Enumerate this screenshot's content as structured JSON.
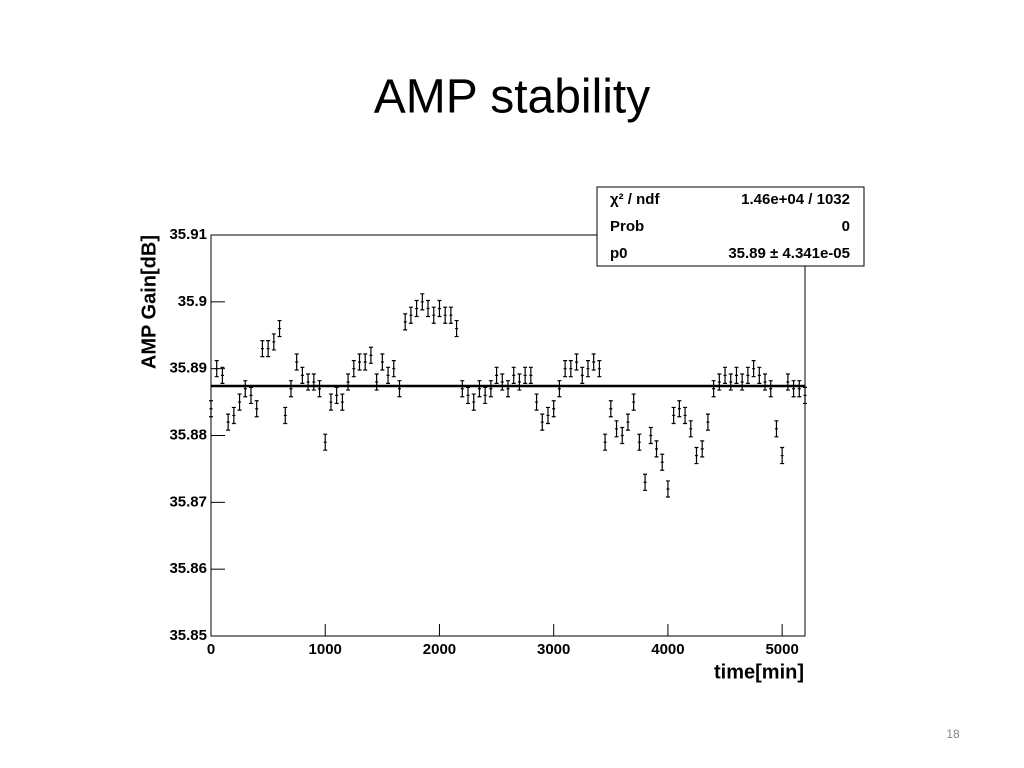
{
  "chart_data": {
    "type": "errorbar",
    "title": "AMP stability",
    "page_number": "18",
    "x_label": "time[min]",
    "y_label": "AMP Gain[dB]",
    "xlim": [
      0,
      5200
    ],
    "xticks": [
      0,
      1000,
      2000,
      3000,
      4000,
      5000
    ],
    "ylim": [
      35.85,
      35.91
    ],
    "yticks": [
      35.85,
      35.86,
      35.87,
      35.88,
      35.89,
      35.9,
      35.91
    ],
    "color": "#000000",
    "fit_value": 35.8874,
    "stats": [
      {
        "label": "χ² / ndf",
        "value": "1.46e+04 / 1032"
      },
      {
        "label": "Prob",
        "value": "0"
      },
      {
        "label": "p0",
        "value": "35.89 ± 4.341e-05"
      }
    ],
    "x": [
      0,
      50,
      100,
      150,
      200,
      250,
      300,
      350,
      400,
      450,
      500,
      550,
      600,
      650,
      700,
      750,
      800,
      850,
      900,
      950,
      1000,
      1050,
      1100,
      1150,
      1200,
      1250,
      1300,
      1350,
      1400,
      1450,
      1500,
      1550,
      1600,
      1650,
      1700,
      1750,
      1800,
      1850,
      1900,
      1950,
      2000,
      2050,
      2100,
      2150,
      2200,
      2250,
      2300,
      2350,
      2400,
      2450,
      2500,
      2550,
      2600,
      2650,
      2700,
      2750,
      2800,
      2850,
      2900,
      2950,
      3000,
      3050,
      3100,
      3150,
      3200,
      3250,
      3300,
      3350,
      3400,
      3450,
      3500,
      3550,
      3600,
      3650,
      3700,
      3750,
      3800,
      3850,
      3900,
      3950,
      4000,
      4050,
      4100,
      4150,
      4200,
      4250,
      4300,
      4350,
      4400,
      4450,
      4500,
      4550,
      4600,
      4650,
      4700,
      4750,
      4800,
      4850,
      4900,
      4950,
      5000,
      5050,
      5100,
      5150,
      5200
    ],
    "values": [
      35.884,
      35.89,
      35.889,
      35.882,
      35.883,
      35.885,
      35.887,
      35.886,
      35.884,
      35.893,
      35.893,
      35.894,
      35.896,
      35.883,
      35.887,
      35.891,
      35.889,
      35.888,
      35.888,
      35.887,
      35.879,
      35.885,
      35.886,
      35.885,
      35.888,
      35.89,
      35.891,
      35.891,
      35.892,
      35.888,
      35.891,
      35.889,
      35.89,
      35.887,
      35.897,
      35.898,
      35.899,
      35.9,
      35.899,
      35.898,
      35.899,
      35.898,
      35.898,
      35.896,
      35.887,
      35.886,
      35.885,
      35.887,
      35.886,
      35.887,
      35.889,
      35.888,
      35.887,
      35.889,
      35.888,
      35.889,
      35.889,
      35.885,
      35.882,
      35.883,
      35.884,
      35.887,
      35.89,
      35.89,
      35.891,
      35.889,
      35.89,
      35.891,
      35.89,
      35.879,
      35.884,
      35.881,
      35.88,
      35.882,
      35.885,
      35.879,
      35.873,
      35.88,
      35.878,
      35.876,
      35.872,
      35.883,
      35.884,
      35.883,
      35.881,
      35.877,
      35.878,
      35.882,
      35.887,
      35.888,
      35.889,
      35.888,
      35.889,
      35.888,
      35.889,
      35.89,
      35.889,
      35.888,
      35.887,
      35.881,
      35.877,
      35.888,
      35.887,
      35.887,
      35.886
    ],
    "errors": [
      0.0012,
      0.0012,
      0.0012,
      0.0012,
      0.0012,
      0.0012,
      0.0012,
      0.0012,
      0.0012,
      0.0012,
      0.0012,
      0.0012,
      0.0012,
      0.0012,
      0.0012,
      0.0012,
      0.0012,
      0.0012,
      0.0012,
      0.0012,
      0.0012,
      0.0012,
      0.0012,
      0.0012,
      0.0012,
      0.0012,
      0.0012,
      0.0012,
      0.0012,
      0.0012,
      0.0012,
      0.0012,
      0.0012,
      0.0012,
      0.0012,
      0.0012,
      0.0012,
      0.0012,
      0.0012,
      0.0012,
      0.0012,
      0.0012,
      0.0012,
      0.0012,
      0.0012,
      0.0012,
      0.0012,
      0.0012,
      0.0012,
      0.0012,
      0.0012,
      0.0012,
      0.0012,
      0.0012,
      0.0012,
      0.0012,
      0.0012,
      0.0012,
      0.0012,
      0.0012,
      0.0012,
      0.0012,
      0.0012,
      0.0012,
      0.0012,
      0.0012,
      0.0012,
      0.0012,
      0.0012,
      0.0012,
      0.0012,
      0.0012,
      0.0012,
      0.0012,
      0.0012,
      0.0012,
      0.0012,
      0.0012,
      0.0012,
      0.0012,
      0.0012,
      0.0012,
      0.0012,
      0.0012,
      0.0012,
      0.0012,
      0.0012,
      0.0012,
      0.0012,
      0.0012,
      0.0012,
      0.0012,
      0.0012,
      0.0012,
      0.0012,
      0.0012,
      0.0012,
      0.0012,
      0.0012,
      0.0012,
      0.0012,
      0.0012,
      0.0012,
      0.0012,
      0.0012
    ]
  }
}
